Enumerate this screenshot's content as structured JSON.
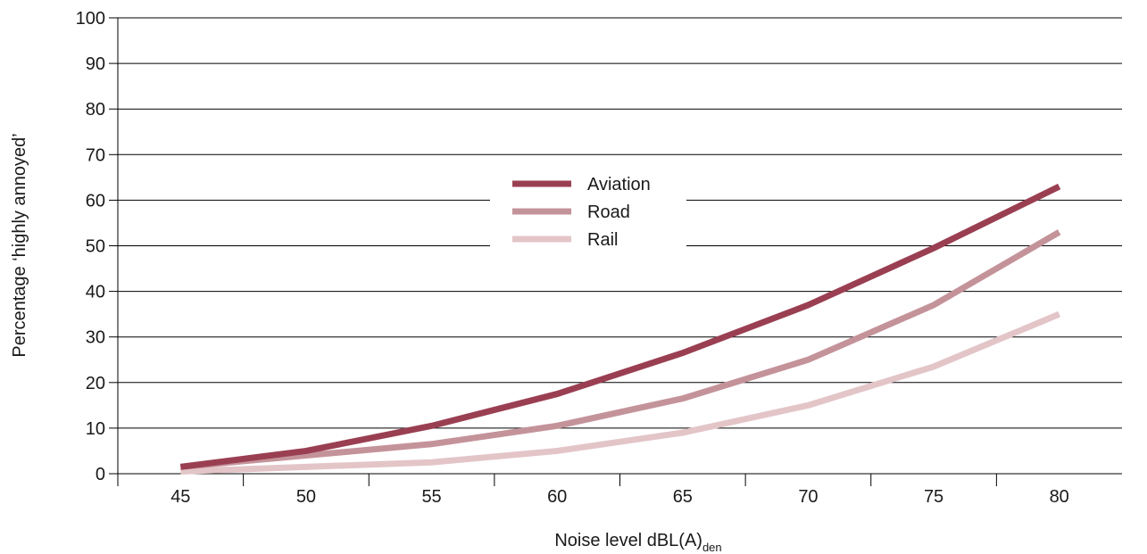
{
  "chart_data": {
    "type": "line",
    "x": [
      45,
      50,
      55,
      60,
      65,
      70,
      75,
      80
    ],
    "series": [
      {
        "name": "Aviation",
        "color": "#9a3f52",
        "values": [
          1.5,
          5,
          10.5,
          17.5,
          26.5,
          37,
          49.5,
          63
        ]
      },
      {
        "name": "Road",
        "color": "#c4939a",
        "values": [
          1.5,
          4,
          6.5,
          10.5,
          16.5,
          25,
          37,
          53
        ]
      },
      {
        "name": "Rail",
        "color": "#e3c5c8",
        "values": [
          0.5,
          1.5,
          2.5,
          5,
          9,
          15,
          23.5,
          35
        ]
      }
    ],
    "ylabel": "Percentage ‘highly annoyed’",
    "xlabel_main": "Noise level dBL(A)",
    "xlabel_sub": "den",
    "ylim": [
      0,
      100
    ],
    "yticks": [
      "0",
      "10",
      "20",
      "30",
      "40",
      "50",
      "60",
      "70",
      "80",
      "90",
      "100"
    ],
    "xtick_labels": [
      "45",
      "50",
      "55",
      "60",
      "65",
      "70",
      "75",
      "80"
    ],
    "grid": true,
    "legend_position": "center"
  }
}
